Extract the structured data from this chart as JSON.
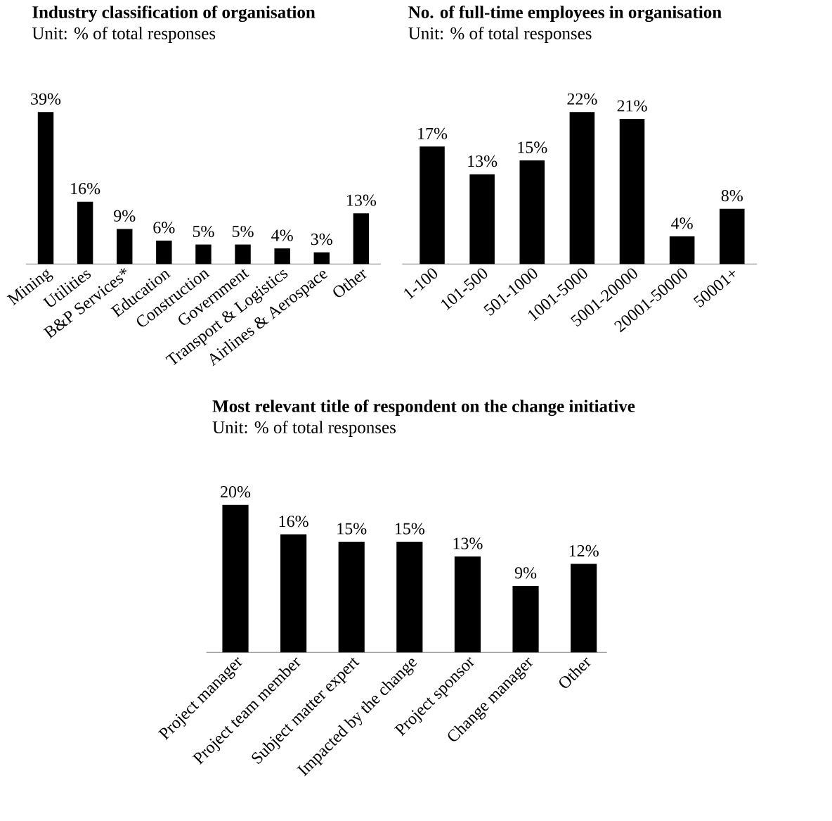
{
  "chart_data": [
    {
      "type": "bar",
      "title": "Industry classification of organisation",
      "subtitle": "Unit: % of total responses",
      "categories": [
        "Mining",
        "Utilities",
        "B&P Services*",
        "Education",
        "Construction",
        "Government",
        "Transport & Logistics",
        "Airlines & Aerospace",
        "Other"
      ],
      "values": [
        39,
        16,
        9,
        6,
        5,
        5,
        4,
        3,
        13
      ],
      "value_labels": [
        "39%",
        "16%",
        "9%",
        "6%",
        "5%",
        "5%",
        "4%",
        "3%",
        "13%"
      ],
      "color": "#000000"
    },
    {
      "type": "bar",
      "title": "No. of full-time employees in organisation",
      "subtitle": "Unit: % of total responses",
      "categories": [
        "1-100",
        "101-500",
        "501-1000",
        "1001-5000",
        "5001-20000",
        "20001-50000",
        "50001+"
      ],
      "values": [
        17,
        13,
        15,
        22,
        21,
        4,
        8
      ],
      "value_labels": [
        "17%",
        "13%",
        "15%",
        "22%",
        "21%",
        "4%",
        "8%"
      ],
      "color": "#000000"
    },
    {
      "type": "bar",
      "title": "Most relevant title of respondent on the change initiative",
      "subtitle": "Unit: % of total responses",
      "categories": [
        "Project manager",
        "Project team member",
        "Subject matter expert",
        "Impacted by the change",
        "Project sponsor",
        "Change manager",
        "Other"
      ],
      "values": [
        20,
        16,
        15,
        15,
        13,
        9,
        12
      ],
      "value_labels": [
        "20%",
        "16%",
        "15%",
        "15%",
        "13%",
        "9%",
        "12%"
      ],
      "color": "#000000"
    }
  ]
}
